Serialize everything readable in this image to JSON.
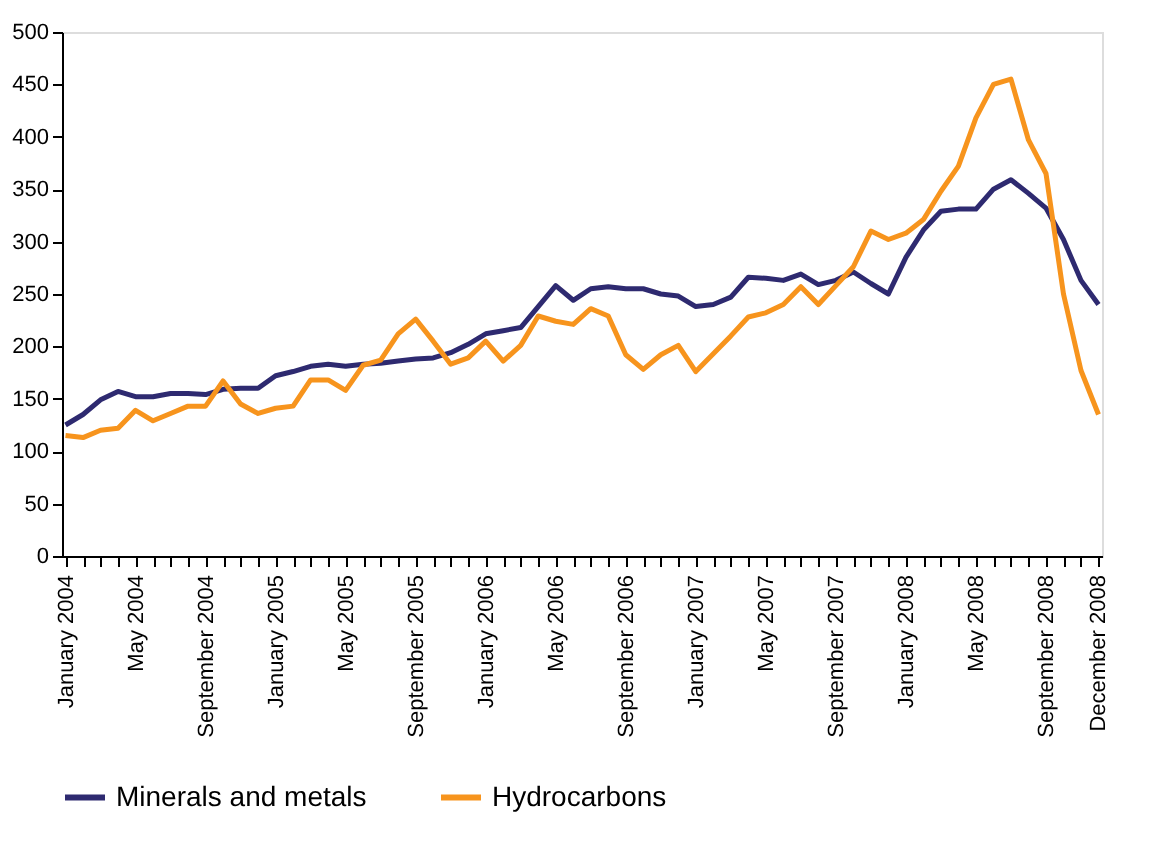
{
  "chart_data": {
    "type": "line",
    "categories": [
      "January 2004",
      null,
      null,
      null,
      "May 2004",
      null,
      null,
      null,
      "September 2004",
      null,
      null,
      null,
      "January 2005",
      null,
      null,
      null,
      "May 2005",
      null,
      null,
      null,
      "September 2005",
      null,
      null,
      null,
      "January 2006",
      null,
      null,
      null,
      "May 2006",
      null,
      null,
      null,
      "September 2006",
      null,
      null,
      null,
      "January 2007",
      null,
      null,
      null,
      "May 2007",
      null,
      null,
      null,
      "September 2007",
      null,
      null,
      null,
      "January 2008",
      null,
      null,
      null,
      "May 2008",
      null,
      null,
      null,
      "September 2008",
      null,
      null,
      "December 2008"
    ],
    "series": [
      {
        "name": "Minerals and metals",
        "color": "#2e2a70",
        "values": [
          125,
          135,
          149,
          157,
          152,
          152,
          155,
          155,
          154,
          159,
          160,
          160,
          172,
          176,
          181,
          183,
          181,
          183,
          184,
          186,
          188,
          189,
          194,
          202,
          212,
          215,
          218,
          238,
          258,
          244,
          255,
          257,
          255,
          255,
          250,
          248,
          238,
          240,
          247,
          266,
          265,
          263,
          269,
          259,
          263,
          271,
          260,
          250,
          285,
          311,
          329,
          331,
          331,
          350,
          359,
          346,
          332,
          302,
          263,
          240
        ]
      },
      {
        "name": "Hydrocarbons",
        "color": "#f7941d",
        "values": [
          115,
          113,
          120,
          122,
          139,
          129,
          136,
          143,
          143,
          167,
          145,
          136,
          141,
          143,
          168,
          168,
          158,
          182,
          187,
          212,
          226,
          205,
          183,
          189,
          205,
          186,
          201,
          229,
          224,
          221,
          236,
          229,
          192,
          178,
          192,
          201,
          176,
          193,
          210,
          228,
          232,
          240,
          257,
          240,
          258,
          276,
          310,
          302,
          308,
          321,
          348,
          372,
          418,
          450,
          455,
          397,
          365,
          250,
          177,
          135
        ]
      }
    ],
    "ylim": [
      0,
      500
    ],
    "yticks": [
      0,
      50,
      100,
      150,
      200,
      250,
      300,
      350,
      400,
      450,
      500
    ],
    "grid": false,
    "legend": "bottom",
    "marker": "none",
    "line_style": "solid"
  }
}
